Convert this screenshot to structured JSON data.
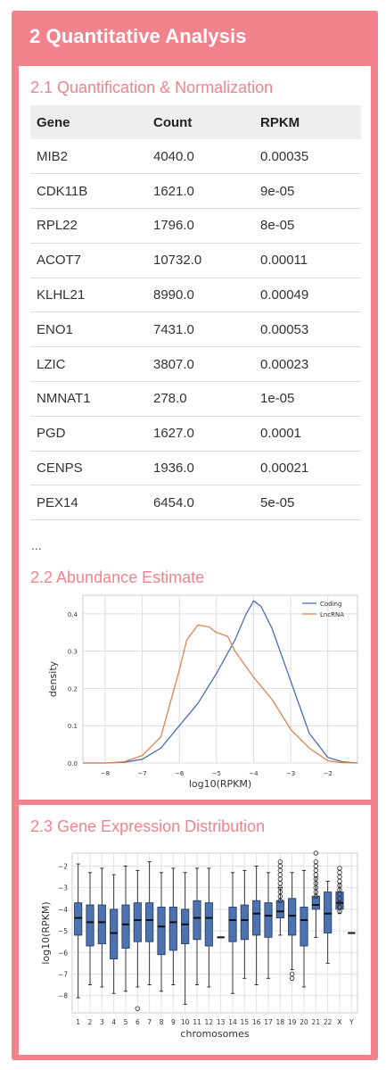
{
  "header": {
    "title": "2 Quantitative Analysis"
  },
  "quantification": {
    "title": "2.1 Quantification & Normalization",
    "columns": [
      "Gene",
      "Count",
      "RPKM"
    ],
    "rows": [
      [
        "MIB2",
        "4040.0",
        "0.00035"
      ],
      [
        "CDK11B",
        "1621.0",
        "9e-05"
      ],
      [
        "RPL22",
        "1796.0",
        "8e-05"
      ],
      [
        "ACOT7",
        "10732.0",
        "0.00011"
      ],
      [
        "KLHL21",
        "8990.0",
        "0.00049"
      ],
      [
        "ENO1",
        "7431.0",
        "0.00053"
      ],
      [
        "LZIC",
        "3807.0",
        "0.00023"
      ],
      [
        "NMNAT1",
        "278.0",
        "1e-05"
      ],
      [
        "PGD",
        "1627.0",
        "0.0001"
      ],
      [
        "CENPS",
        "1936.0",
        "0.00021"
      ],
      [
        "PEX14",
        "6454.0",
        "5e-05"
      ]
    ],
    "more": "..."
  },
  "abundance": {
    "title": "2.2 Abundance Estimate"
  },
  "distribution": {
    "title": "2.3 Gene Expression Distribution"
  },
  "colors": {
    "accent": "#f2838c",
    "coding": "#4a6fb3",
    "lncrna": "#dd8452",
    "box": "#4c72b0"
  },
  "chart_data": [
    {
      "type": "line",
      "xlabel": "log10(RPKM)",
      "ylabel": "density",
      "xlim": [
        -8.6,
        -1.2
      ],
      "ylim": [
        0,
        0.45
      ],
      "xticks": [
        -8,
        -7,
        -6,
        -5,
        -4,
        -3,
        -2
      ],
      "yticks": [
        0.0,
        0.1,
        0.2,
        0.3,
        0.4
      ],
      "xtick_labels": [
        "−8",
        "−7",
        "−6",
        "−5",
        "−4",
        "−3",
        "−2"
      ],
      "ytick_labels": [
        "0.0",
        "0.1",
        "0.2",
        "0.3",
        "0.4"
      ],
      "grid": true,
      "legend": "top-right",
      "series": [
        {
          "name": "Coding",
          "x": [
            -8.6,
            -8,
            -7.5,
            -7,
            -6.5,
            -6,
            -5.5,
            -5,
            -4.5,
            -4.2,
            -4,
            -3.8,
            -3.5,
            -3,
            -2.5,
            -2,
            -1.6,
            -1.2
          ],
          "y": [
            0,
            0.0,
            0.002,
            0.01,
            0.04,
            0.1,
            0.16,
            0.24,
            0.33,
            0.4,
            0.435,
            0.42,
            0.36,
            0.22,
            0.08,
            0.015,
            0.003,
            0
          ]
        },
        {
          "name": "LncRNA",
          "x": [
            -8.6,
            -8,
            -7.5,
            -7,
            -6.5,
            -6,
            -5.8,
            -5.5,
            -5.2,
            -5,
            -4.7,
            -4.5,
            -4,
            -3.5,
            -3,
            -2.5,
            -2,
            -1.6,
            -1.2
          ],
          "y": [
            0,
            0.0,
            0.003,
            0.02,
            0.07,
            0.25,
            0.33,
            0.37,
            0.365,
            0.35,
            0.34,
            0.3,
            0.23,
            0.17,
            0.09,
            0.04,
            0.006,
            0.001,
            0
          ]
        }
      ]
    },
    {
      "type": "box",
      "xlabel": "chromosomes",
      "ylabel": "log10(RPKM)",
      "ylim": [
        -8.8,
        -1.4
      ],
      "yticks": [
        -2,
        -3,
        -4,
        -5,
        -6,
        -7,
        -8
      ],
      "ytick_labels": [
        "−2",
        "−3",
        "−4",
        "−5",
        "−6",
        "−7",
        "−8"
      ],
      "grid": true,
      "categories": [
        "1",
        "2",
        "3",
        "4",
        "5",
        "6",
        "7",
        "8",
        "9",
        "10",
        "11",
        "12",
        "13",
        "14",
        "15",
        "16",
        "17",
        "18",
        "19",
        "20",
        "21",
        "22",
        "X",
        "Y"
      ],
      "boxes": [
        {
          "q1": -5.2,
          "median": -4.4,
          "q3": -3.7,
          "lo": -8.1,
          "hi": -1.9
        },
        {
          "q1": -5.7,
          "median": -4.6,
          "q3": -3.8,
          "lo": -7.5,
          "hi": -2.3
        },
        {
          "q1": -5.6,
          "median": -4.6,
          "q3": -3.8,
          "lo": -7.6,
          "hi": -2.1
        },
        {
          "q1": -6.3,
          "median": -5.1,
          "q3": -4.0,
          "lo": -7.9,
          "hi": -2.4
        },
        {
          "q1": -5.8,
          "median": -4.7,
          "q3": -3.8,
          "lo": -7.8,
          "hi": -2.0
        },
        {
          "q1": -5.5,
          "median": -4.5,
          "q3": -3.7,
          "lo": -7.6,
          "hi": -2.2
        },
        {
          "q1": -5.5,
          "median": -4.5,
          "q3": -3.7,
          "lo": -7.5,
          "hi": -1.8
        },
        {
          "q1": -6.1,
          "median": -4.8,
          "q3": -3.9,
          "lo": -7.8,
          "hi": -2.3
        },
        {
          "q1": -5.9,
          "median": -4.6,
          "q3": -3.9,
          "lo": -7.5,
          "hi": -2.1
        },
        {
          "q1": -5.6,
          "median": -4.7,
          "q3": -4.0,
          "lo": -8.4,
          "hi": -2.3
        },
        {
          "q1": -5.4,
          "median": -4.4,
          "q3": -3.6,
          "lo": -7.5,
          "hi": -2.1
        },
        {
          "q1": -5.7,
          "median": -4.4,
          "q3": -3.7,
          "lo": -7.6,
          "hi": -2.1
        },
        {
          "q1": -5.3,
          "median": -5.3,
          "q3": -5.3,
          "lo": -5.3,
          "hi": -5.3
        },
        {
          "q1": -5.5,
          "median": -4.5,
          "q3": -3.9,
          "lo": -7.9,
          "hi": -2.3
        },
        {
          "q1": -5.4,
          "median": -4.5,
          "q3": -3.8,
          "lo": -7.2,
          "hi": -2.2
        },
        {
          "q1": -5.2,
          "median": -4.2,
          "q3": -3.6,
          "lo": -7.5,
          "hi": -2.0
        },
        {
          "q1": -5.3,
          "median": -4.3,
          "q3": -3.7,
          "lo": -7.2,
          "hi": -2.3
        },
        {
          "q1": -4.4,
          "median": -4.1,
          "q3": -3.6,
          "lo": -5.2,
          "hi": -3.0
        },
        {
          "q1": -5.2,
          "median": -4.3,
          "q3": -3.5,
          "lo": -6.8,
          "hi": -2.3
        },
        {
          "q1": -5.7,
          "median": -4.5,
          "q3": -3.9,
          "lo": -7.6,
          "hi": -2.2
        },
        {
          "q1": -4.0,
          "median": -3.8,
          "q3": -3.4,
          "lo": -5.3,
          "hi": -2.5
        },
        {
          "q1": -5.1,
          "median": -4.2,
          "q3": -3.2,
          "lo": -6.5,
          "hi": -2.7
        },
        {
          "q1": -4.0,
          "median": -3.7,
          "q3": -3.2,
          "lo": -4.2,
          "hi": -2.8
        },
        {
          "q1": -5.1,
          "median": -5.1,
          "q3": -5.1,
          "lo": -5.1,
          "hi": -5.1
        }
      ],
      "outliers": [
        {
          "cat": 5,
          "values": [
            -8.6
          ]
        },
        {
          "cat": 17,
          "values": [
            -1.8,
            -2.0,
            -2.2,
            -2.4,
            -2.6,
            -2.8,
            -3.0,
            -3.2,
            -3.4,
            -3.6
          ]
        },
        {
          "cat": 18,
          "values": [
            -7.0,
            -7.2
          ]
        },
        {
          "cat": 20,
          "values": [
            -1.4,
            -1.8,
            -2.0,
            -2.2,
            -2.4,
            -2.6,
            -2.8,
            -3.0,
            -3.2,
            -3.4
          ]
        },
        {
          "cat": 22,
          "values": [
            -2.1,
            -2.3,
            -2.5,
            -2.7,
            -2.9,
            -3.1,
            -3.3,
            -3.5,
            -3.7,
            -3.9,
            -4.1
          ]
        }
      ]
    }
  ]
}
